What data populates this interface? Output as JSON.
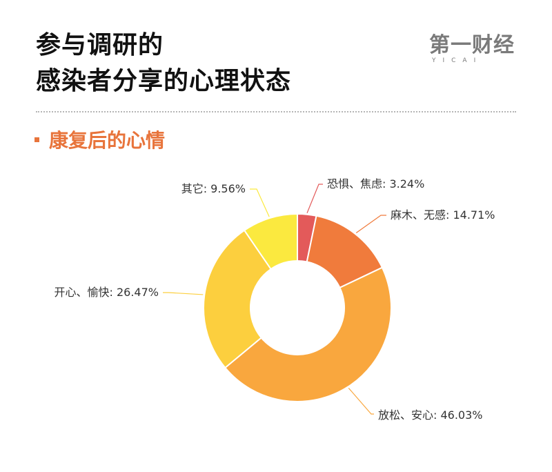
{
  "title": {
    "line1": "参与调研的",
    "line2": "感染者分享的心理状态"
  },
  "logo": {
    "main": "第一财经",
    "sub": "YICAI"
  },
  "section": {
    "title": "康复后的心情"
  },
  "chart_data": {
    "type": "pie",
    "donut": true,
    "slices": [
      {
        "label": "恐惧、焦虑",
        "value": 3.24,
        "display": "恐惧、焦虑: 3.24%",
        "color": "#e35a5a"
      },
      {
        "label": "麻木、无感",
        "value": 14.71,
        "display": "麻木、无感: 14.71%",
        "color": "#f07b3c"
      },
      {
        "label": "放松、安心",
        "value": 46.03,
        "display": "放松、安心: 46.03%",
        "color": "#f9a73e"
      },
      {
        "label": "开心、愉快",
        "value": 26.47,
        "display": "开心、愉快: 26.47%",
        "color": "#fccf3e"
      },
      {
        "label": "其它",
        "value": 9.56,
        "display": "其它: 9.56%",
        "color": "#fbe93f"
      }
    ]
  }
}
